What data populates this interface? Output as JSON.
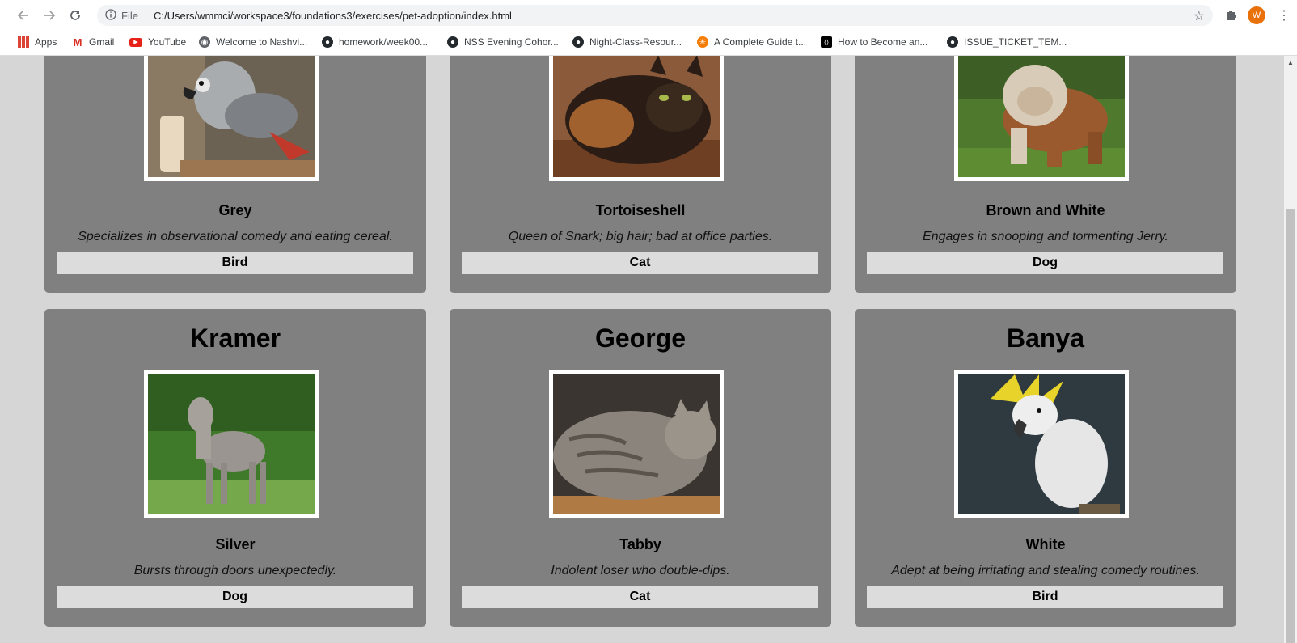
{
  "browser": {
    "file_label": "File",
    "url": "C:/Users/wmmci/workspace3/foundations3/exercises/pet-adoption/index.html",
    "profile_initial": "W",
    "bookmarks": [
      {
        "label": "Apps",
        "icon": "apps-icon"
      },
      {
        "label": "Gmail",
        "icon": "gmail-icon"
      },
      {
        "label": "YouTube",
        "icon": "youtube-icon"
      },
      {
        "label": "Welcome to Nashvi...",
        "icon": "web-icon"
      },
      {
        "label": "homework/week00...",
        "icon": "github-icon"
      },
      {
        "label": "NSS Evening Cohor...",
        "icon": "github-icon"
      },
      {
        "label": "Night-Class-Resour...",
        "icon": "github-icon"
      },
      {
        "label": "A Complete Guide t...",
        "icon": "guide-icon"
      },
      {
        "label": "How to Become an...",
        "icon": "code-icon"
      },
      {
        "label": "ISSUE_TICKET_TEM...",
        "icon": "github-icon"
      }
    ]
  },
  "pets": [
    {
      "name": "",
      "color": "Grey",
      "description": "Specializes in observational comedy and eating cereal.",
      "type": "Bird",
      "image": "grey-parrot-photo"
    },
    {
      "name": "",
      "color": "Tortoiseshell",
      "description": "Queen of Snark; big hair; bad at office parties.",
      "type": "Cat",
      "image": "tortoiseshell-cat-photo"
    },
    {
      "name": "",
      "color": "Brown and White",
      "description": "Engages in snooping and tormenting Jerry.",
      "type": "Dog",
      "image": "bulldog-photo"
    },
    {
      "name": "Kramer",
      "color": "Silver",
      "description": "Bursts through doors unexpectedly.",
      "type": "Dog",
      "image": "weimaraner-photo"
    },
    {
      "name": "George",
      "color": "Tabby",
      "description": "Indolent loser who double-dips.",
      "type": "Cat",
      "image": "tabby-cat-photo"
    },
    {
      "name": "Banya",
      "color": "White",
      "description": "Adept at being irritating and stealing comedy routines.",
      "type": "Bird",
      "image": "cockatoo-photo"
    }
  ]
}
